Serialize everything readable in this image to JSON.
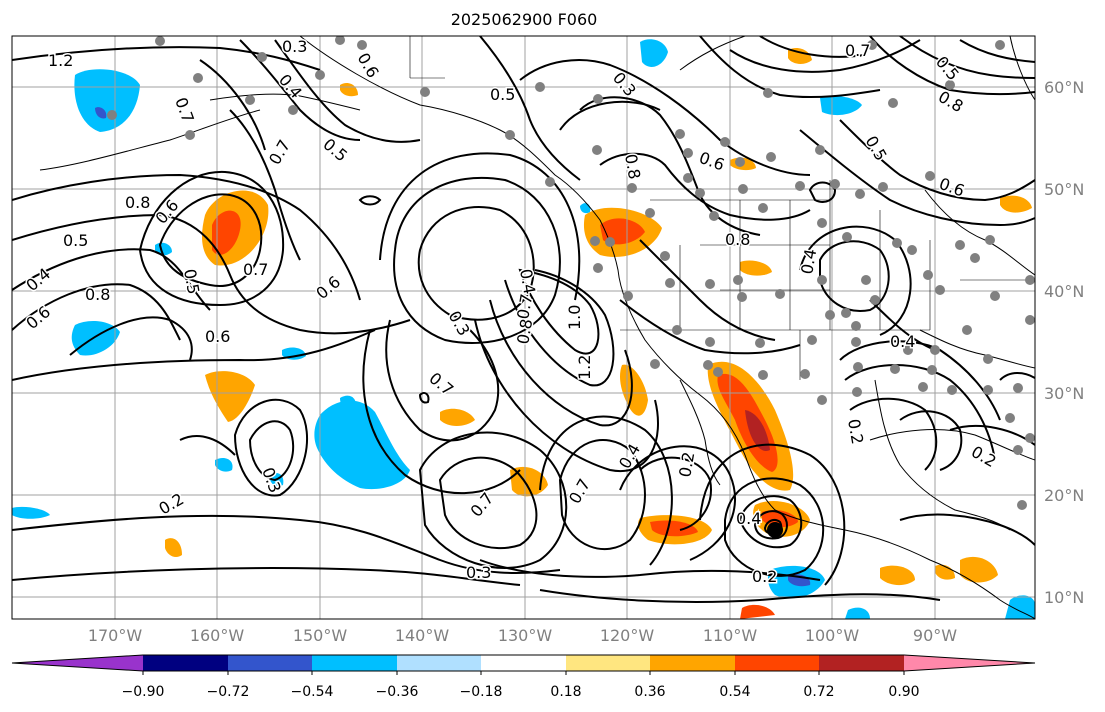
{
  "title": "2025062900 F060",
  "lat_labels": [
    "60°N",
    "50°N",
    "40°N",
    "30°N",
    "20°N",
    "10°N"
  ],
  "lon_labels": [
    "170°W",
    "160°W",
    "150°W",
    "140°W",
    "130°W",
    "120°W",
    "110°W",
    "100°W",
    "90°W"
  ],
  "colorbar": {
    "ticks": [
      "−0.90",
      "−0.72",
      "−0.54",
      "−0.36",
      "−0.18",
      "0.18",
      "0.36",
      "0.54",
      "0.72",
      "0.90"
    ],
    "colors": [
      "#9933cc",
      "#000080",
      "#3355cc",
      "#00bfff",
      "#b0e0ff",
      "#ffffff",
      "#ffe680",
      "#ffa500",
      "#ff4500",
      "#b22222",
      "#ff88aa"
    ]
  },
  "contour_labels": [
    "1.2",
    "0.3",
    "0.6",
    "0.7",
    "0.5",
    "0.4",
    "0.8",
    "0.6",
    "0.5",
    "0.7",
    "0.8",
    "0.5",
    "0.6",
    "0.4",
    "0.6",
    "0.7",
    "0.6",
    "0.5",
    "0.3",
    "0.4",
    "0.7",
    "1.0",
    "0.8",
    "1.2",
    "0.7",
    "0.3",
    "0.2",
    "0.7",
    "0.7",
    "0.4",
    "0.2",
    "0.4",
    "0.2",
    "0.3",
    "0.8",
    "0.6",
    "0.8",
    "0.4",
    "0.5",
    "0.7",
    "0.6",
    "0.5",
    "0.3",
    "0.2",
    "0.2",
    "0.4",
    "0.8"
  ]
}
